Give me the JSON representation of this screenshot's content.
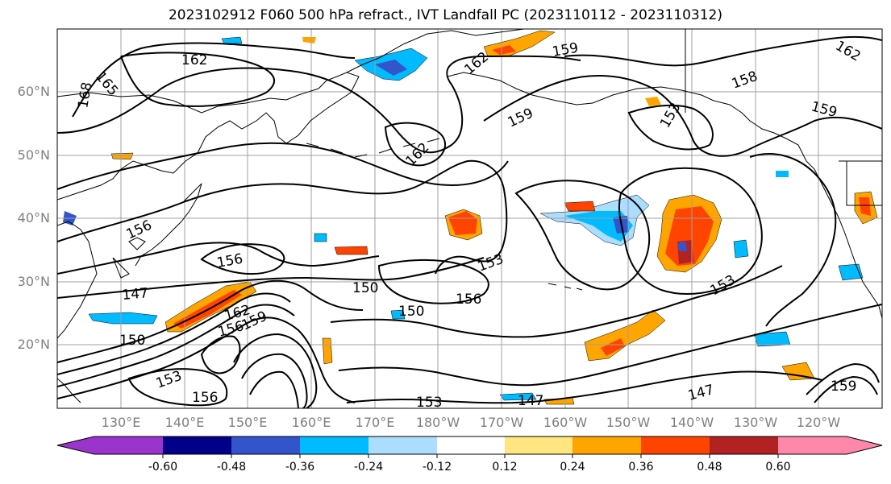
{
  "title": "2023102912 F060 500 hPa refract., IVT Landfall PC (2023110112 - 2023110312)",
  "lat_labels": [
    "60°N",
    "50°N",
    "40°N",
    "30°N",
    "20°N"
  ],
  "lon_labels": [
    "130°E",
    "140°E",
    "150°E",
    "160°E",
    "170°E",
    "180°W",
    "170°W",
    "160°W",
    "150°W",
    "140°W",
    "130°W",
    "120°W"
  ],
  "contour_labels": [
    "162",
    "165",
    "168",
    "162",
    "162",
    "159",
    "159",
    "158",
    "153",
    "159",
    "162",
    "156",
    "156",
    "153",
    "147",
    "150",
    "150",
    "156",
    "150",
    "162",
    "159",
    "156",
    "153",
    "156",
    "153",
    "147",
    "147",
    "153",
    "159"
  ],
  "colorbar": {
    "tick_labels": [
      "-0.60",
      "-0.48",
      "-0.36",
      "-0.24",
      "-0.12",
      "0.12",
      "0.24",
      "0.36",
      "0.48",
      "0.60"
    ],
    "colors": [
      "#9b34cc",
      "#000088",
      "#3355cc",
      "#00bbff",
      "#aaddff",
      "#ffffff",
      "#ffe680",
      "#ffa500",
      "#ff4400",
      "#b22222",
      "#ff88aa"
    ]
  },
  "colors": {
    "background": "#ffffff",
    "contour": "#000000",
    "grid": "#a0a0a0",
    "coast": "#000000",
    "tick_label": "#7f7f7f"
  }
}
